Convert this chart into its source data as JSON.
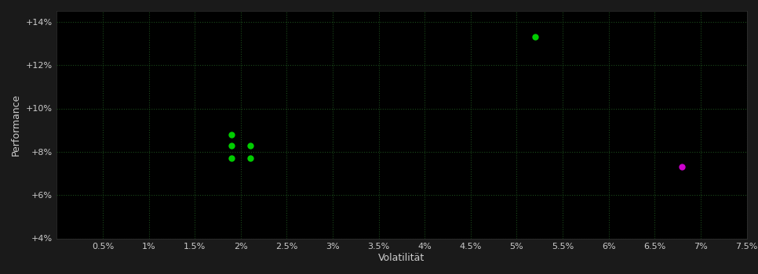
{
  "background_color": "#1a1a1a",
  "plot_bg_color": "#000000",
  "grid_color": "#1a4a1a",
  "xlabel": "Volatilität",
  "ylabel": "Performance",
  "label_color": "#cccccc",
  "tick_color": "#cccccc",
  "xlim": [
    0.0,
    0.075
  ],
  "ylim": [
    0.04,
    0.145
  ],
  "xticks": [
    0.005,
    0.01,
    0.015,
    0.02,
    0.025,
    0.03,
    0.035,
    0.04,
    0.045,
    0.05,
    0.055,
    0.06,
    0.065,
    0.07,
    0.075
  ],
  "yticks": [
    0.04,
    0.06,
    0.08,
    0.1,
    0.12,
    0.14
  ],
  "xtick_labels": [
    "0.5%",
    "1%",
    "1.5%",
    "2%",
    "2.5%",
    "3%",
    "3.5%",
    "4%",
    "4.5%",
    "5%",
    "5.5%",
    "6%",
    "6.5%",
    "7%",
    "7.5%"
  ],
  "ytick_labels": [
    "+4%",
    "+6%",
    "+8%",
    "+10%",
    "+12%",
    "+14%"
  ],
  "green_points": [
    [
      0.019,
      0.088
    ],
    [
      0.019,
      0.083
    ],
    [
      0.019,
      0.077
    ],
    [
      0.021,
      0.083
    ],
    [
      0.021,
      0.077
    ],
    [
      0.052,
      0.133
    ]
  ],
  "magenta_points": [
    [
      0.068,
      0.073
    ]
  ],
  "green_color": "#00cc00",
  "magenta_color": "#cc00cc",
  "marker_size": 36,
  "font_size_ticks": 8,
  "font_size_label": 9
}
